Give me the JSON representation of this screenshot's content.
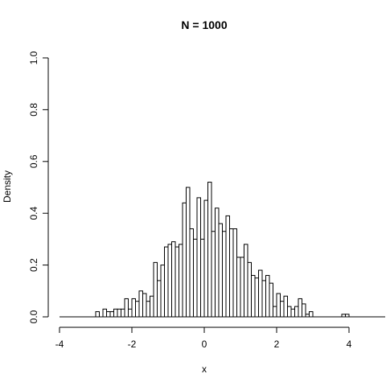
{
  "chart_data": {
    "type": "bar",
    "title": "N =  1000",
    "xlabel": "x",
    "ylabel": "Density",
    "xlim": [
      -4,
      4
    ],
    "ylim": [
      0,
      1
    ],
    "x_ticks": [
      "-4",
      "-2",
      "0",
      "2",
      "4"
    ],
    "y_ticks": [
      "0.0",
      "0.2",
      "0.4",
      "0.6",
      "0.8",
      "1.0"
    ],
    "bin_width": 0.1,
    "bin_start": -4,
    "values": [
      0,
      0,
      0,
      0,
      0,
      0,
      0,
      0,
      0,
      0,
      0.02,
      0,
      0.03,
      0.02,
      0.02,
      0.03,
      0.03,
      0.03,
      0.07,
      0.03,
      0.07,
      0.06,
      0.1,
      0.09,
      0.06,
      0.08,
      0.21,
      0.14,
      0.2,
      0.27,
      0.28,
      0.29,
      0.27,
      0.28,
      0.44,
      0.5,
      0.34,
      0.3,
      0.46,
      0.3,
      0.45,
      0.52,
      0.33,
      0.42,
      0.36,
      0.33,
      0.39,
      0.34,
      0.34,
      0.23,
      0.23,
      0.28,
      0.21,
      0.16,
      0.15,
      0.18,
      0.14,
      0.16,
      0.13,
      0.04,
      0.09,
      0.06,
      0.08,
      0.04,
      0.03,
      0.04,
      0.07,
      0.05,
      0.01,
      0.02,
      0,
      0,
      0,
      0,
      0,
      0,
      0,
      0,
      0.01,
      0.01,
      0,
      0,
      0,
      0,
      0,
      0,
      0,
      0,
      0,
      0
    ]
  }
}
